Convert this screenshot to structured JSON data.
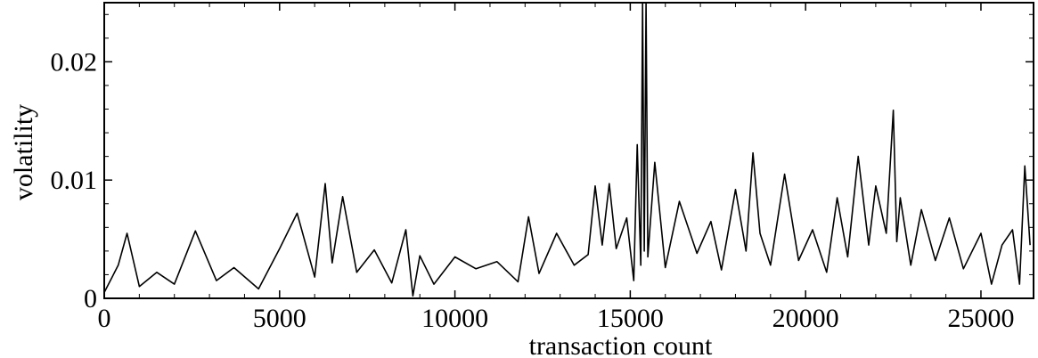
{
  "chart_data": {
    "type": "line",
    "title": "",
    "xlabel": "transaction count",
    "ylabel": "volatility",
    "xlim": [
      0,
      26500
    ],
    "ylim": [
      0,
      0.025
    ],
    "x_ticks": [
      0,
      5000,
      10000,
      15000,
      20000,
      25000
    ],
    "x_tick_labels": [
      "0",
      "5000",
      "10000",
      "15000",
      "20000",
      "25000"
    ],
    "y_ticks": [
      0,
      0.01,
      0.02
    ],
    "y_tick_labels": [
      "0",
      "0.01",
      "0.02"
    ],
    "grid": false,
    "legend": "none",
    "series": [
      {
        "color": "#000000",
        "x": [
          0,
          400,
          650,
          1000,
          1500,
          2000,
          2600,
          3200,
          3700,
          4400,
          5000,
          5500,
          6000,
          6300,
          6500,
          6800,
          7200,
          7700,
          8200,
          8600,
          8800,
          9000,
          9400,
          10000,
          10600,
          11200,
          11800,
          12100,
          12400,
          12900,
          13400,
          13800,
          14000,
          14200,
          14400,
          14600,
          14900,
          15100,
          15200,
          15300,
          15350,
          15400,
          15450,
          15500,
          15700,
          16000,
          16400,
          16900,
          17300,
          17600,
          18000,
          18300,
          18500,
          18700,
          19000,
          19400,
          19800,
          20200,
          20600,
          20900,
          21200,
          21500,
          21800,
          22000,
          22300,
          22500,
          22600,
          22700,
          23000,
          23300,
          23700,
          24100,
          24500,
          25000,
          25300,
          25600,
          25900,
          26100,
          26250,
          26400
        ],
        "y": [
          0.0005,
          0.0028,
          0.0055,
          0.001,
          0.0022,
          0.0012,
          0.0057,
          0.0015,
          0.0026,
          0.0008,
          0.0042,
          0.0072,
          0.0018,
          0.0097,
          0.003,
          0.0086,
          0.0022,
          0.0041,
          0.0013,
          0.0058,
          0.0002,
          0.0036,
          0.0012,
          0.0035,
          0.0025,
          0.0031,
          0.0014,
          0.0069,
          0.0021,
          0.0055,
          0.0028,
          0.0037,
          0.0095,
          0.0045,
          0.0097,
          0.0042,
          0.0068,
          0.0015,
          0.013,
          0.0028,
          0.025,
          0.004,
          0.025,
          0.0035,
          0.0115,
          0.0026,
          0.0082,
          0.0038,
          0.0065,
          0.0024,
          0.0092,
          0.004,
          0.0123,
          0.0055,
          0.0028,
          0.0105,
          0.0032,
          0.0058,
          0.0022,
          0.0085,
          0.0035,
          0.012,
          0.0045,
          0.0095,
          0.0055,
          0.0159,
          0.0048,
          0.0085,
          0.0028,
          0.0075,
          0.0032,
          0.0068,
          0.0025,
          0.0055,
          0.0012,
          0.0045,
          0.0058,
          0.0012,
          0.0112,
          0.0045
        ]
      }
    ]
  }
}
